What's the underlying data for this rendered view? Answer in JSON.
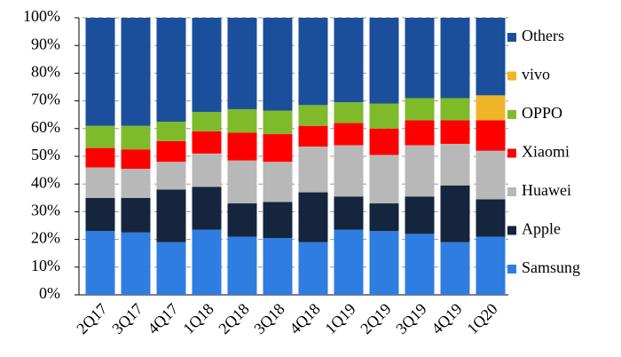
{
  "chart_data": {
    "type": "stacked_bar",
    "categories": [
      "2Q17",
      "3Q17",
      "4Q17",
      "1Q18",
      "2Q18",
      "3Q18",
      "4Q18",
      "1Q19",
      "2Q19",
      "3Q19",
      "4Q19",
      "1Q20"
    ],
    "series": [
      {
        "name": "Samsung",
        "color": "#2f7de1",
        "values": [
          23,
          22.5,
          19,
          23.5,
          21,
          20.5,
          19,
          23.5,
          23,
          22,
          19,
          21
        ]
      },
      {
        "name": "Apple",
        "color": "#14253d",
        "values": [
          12,
          12.5,
          19,
          15.5,
          12,
          13,
          18,
          12,
          10,
          13.5,
          20.5,
          13.5
        ]
      },
      {
        "name": "Huawei",
        "color": "#b8b8b8",
        "values": [
          11,
          10.5,
          10,
          12,
          15.5,
          14.5,
          16.5,
          18.5,
          17.5,
          18.5,
          15,
          17.5
        ]
      },
      {
        "name": "Xiaomi",
        "color": "#ff0000",
        "values": [
          7,
          7,
          7.5,
          8,
          10,
          10,
          7.5,
          8,
          9.5,
          9,
          8.5,
          11
        ]
      },
      {
        "name": "OPPO",
        "color": "#7fba2a",
        "values": [
          8,
          8.5,
          7,
          7,
          8.5,
          8.5,
          7.5,
          7.5,
          9,
          8,
          8,
          0
        ]
      },
      {
        "name": "vivo",
        "color": "#f0b429",
        "values": [
          0,
          0,
          0,
          0,
          0,
          0,
          0,
          0,
          0,
          0,
          0,
          9
        ]
      },
      {
        "name": "Others",
        "color": "#1b4f9c",
        "values": [
          39,
          39,
          37.5,
          34,
          33,
          33.5,
          31.5,
          30.5,
          31,
          29,
          29,
          28
        ]
      }
    ],
    "ylim": [
      0,
      100
    ],
    "yticks": [
      {
        "value": 0,
        "label": "0%"
      },
      {
        "value": 10,
        "label": "10%"
      },
      {
        "value": 20,
        "label": "20%"
      },
      {
        "value": 30,
        "label": "30%"
      },
      {
        "value": 40,
        "label": "40%"
      },
      {
        "value": 50,
        "label": "50%"
      },
      {
        "value": 60,
        "label": "60%"
      },
      {
        "value": 70,
        "label": "70%"
      },
      {
        "value": 80,
        "label": "80%"
      },
      {
        "value": 90,
        "label": "90%"
      },
      {
        "value": 100,
        "label": "100%"
      }
    ],
    "grid": true,
    "legend": "right"
  }
}
